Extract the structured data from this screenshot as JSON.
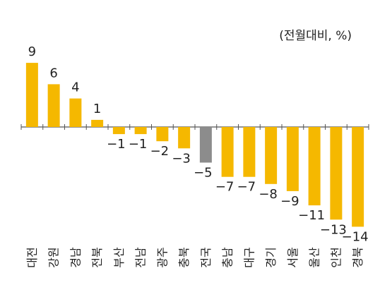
{
  "chart_data": {
    "type": "bar",
    "unit_label": "(전월대비, %)",
    "categories": [
      "대전",
      "강원",
      "경남",
      "전북",
      "부산",
      "전남",
      "광주",
      "충북",
      "전국",
      "충남",
      "대구",
      "경기",
      "서울",
      "울산",
      "인천",
      "경북"
    ],
    "values": [
      9,
      6,
      4,
      1,
      -1,
      -1,
      -2,
      -3,
      -5,
      -7,
      -7,
      -8,
      -9,
      -11,
      -13,
      -14
    ],
    "highlight_category": "전국",
    "ylim": [
      -14,
      9
    ],
    "grid": false,
    "colors": {
      "bar": "#F5B800",
      "highlight": "#8C8C8C",
      "axis": "#555555",
      "text": "#222222"
    }
  }
}
